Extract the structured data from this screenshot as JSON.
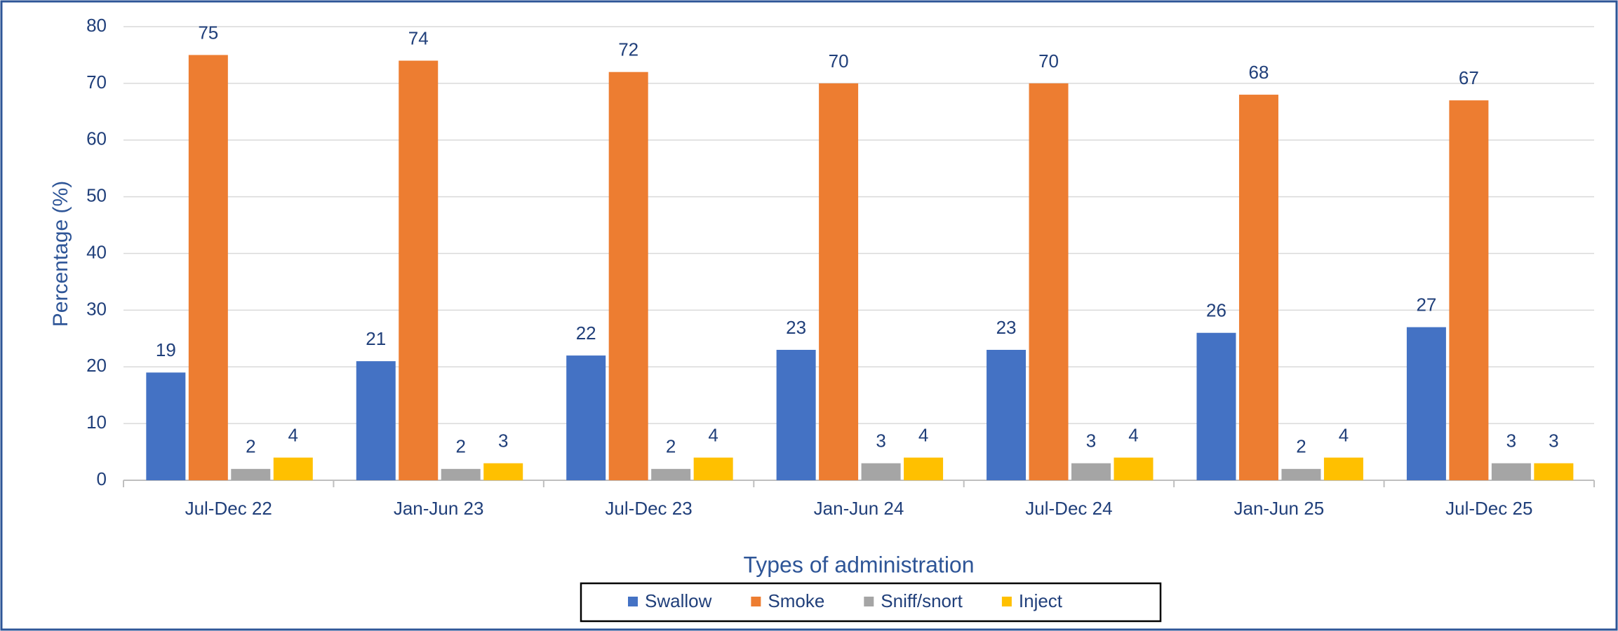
{
  "chart_data": {
    "type": "bar",
    "x_label": "Types of administration",
    "y_label": "Percentage (%)",
    "categories": [
      "Jul-Dec 22",
      "Jan-Jun 23",
      "Jul-Dec 23",
      "Jan-Jun 24",
      "Jul-Dec 24",
      "Jan-Jun 25",
      "Jul-Dec 25"
    ],
    "series": [
      {
        "name": "Swallow",
        "color": "#4472c4",
        "values": [
          19,
          21,
          22,
          23,
          23,
          26,
          27
        ]
      },
      {
        "name": "Smoke",
        "color": "#ed7d31",
        "values": [
          75,
          74,
          72,
          70,
          70,
          68,
          67
        ]
      },
      {
        "name": "Sniff/snort",
        "color": "#a5a5a5",
        "values": [
          2,
          2,
          2,
          3,
          3,
          2,
          3
        ]
      },
      {
        "name": "Inject",
        "color": "#ffc000",
        "values": [
          4,
          3,
          4,
          4,
          4,
          4,
          3
        ]
      }
    ],
    "ylim": [
      0,
      80
    ],
    "yticks": [
      0,
      10,
      20,
      30,
      40,
      50,
      60,
      70,
      80
    ],
    "grid": true,
    "legend": "bottom"
  }
}
